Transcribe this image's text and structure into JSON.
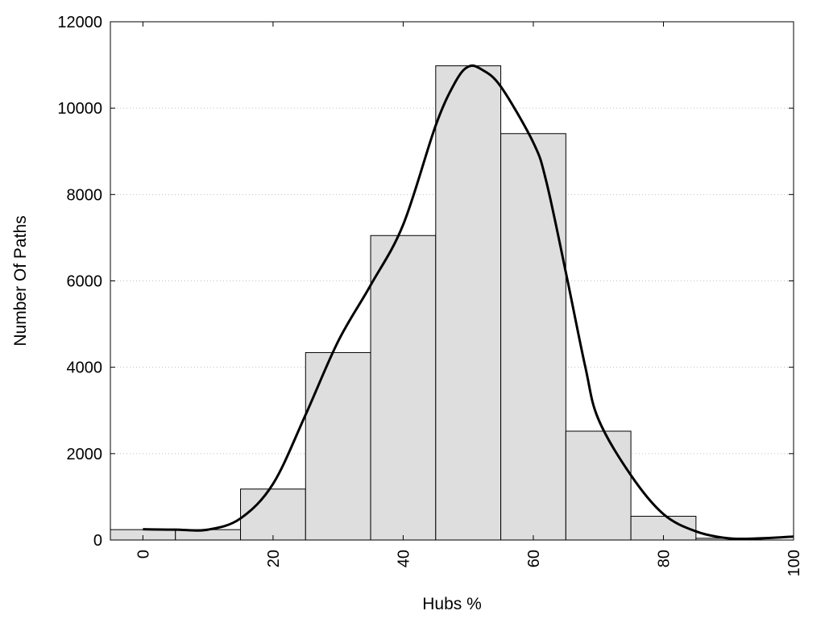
{
  "chart_data": {
    "type": "bar",
    "xlabel": "Hubs %",
    "ylabel": "Number Of Paths",
    "xlim": [
      -5,
      100
    ],
    "ylim": [
      0,
      12000
    ],
    "xticks": [
      0,
      20,
      40,
      60,
      80,
      100
    ],
    "yticks": [
      0,
      2000,
      4000,
      6000,
      8000,
      10000,
      12000
    ],
    "grid": "horizontal dotted",
    "bin_width": 10,
    "bars": {
      "x": [
        0,
        10,
        20,
        30,
        40,
        50,
        60,
        70,
        80,
        90
      ],
      "values": [
        240,
        240,
        1180,
        4340,
        7050,
        10980,
        9410,
        2520,
        550,
        40
      ]
    },
    "curve": {
      "x": [
        0,
        5,
        10,
        15,
        20,
        25,
        30,
        35,
        40,
        45,
        48,
        50,
        52,
        55,
        60,
        62,
        65,
        68,
        70,
        75,
        80,
        85,
        90,
        95,
        100
      ],
      "values": [
        250,
        240,
        240,
        500,
        1300,
        2900,
        4600,
        5900,
        7300,
        9600,
        10600,
        10960,
        10900,
        10500,
        9200,
        8300,
        6200,
        4000,
        2800,
        1500,
        600,
        200,
        40,
        40,
        80
      ]
    },
    "colors": {
      "bar_fill": "#dedede",
      "bar_stroke": "#000000",
      "curve": "#000000",
      "grid": "#bfbfbf"
    }
  }
}
